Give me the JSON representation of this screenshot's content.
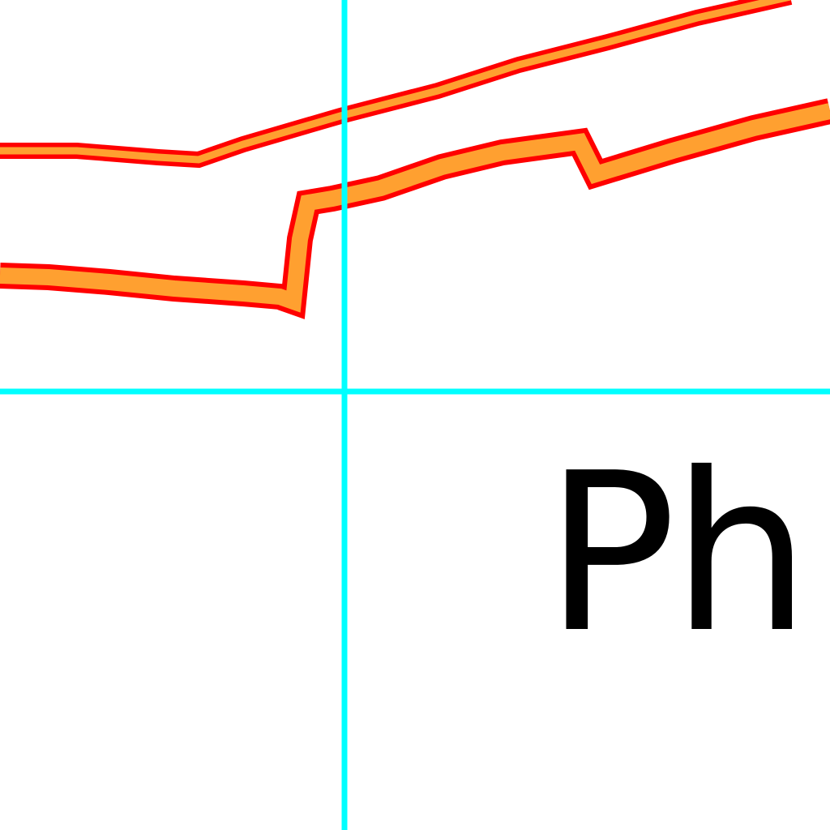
{
  "map": {
    "colors": {
      "background": "#ffffff",
      "grid_line": "#00ffff",
      "road_casing": "#ff0000",
      "road_fill": "#ffa030",
      "label_text": "#000000"
    },
    "label": {
      "text": "Ph"
    }
  }
}
